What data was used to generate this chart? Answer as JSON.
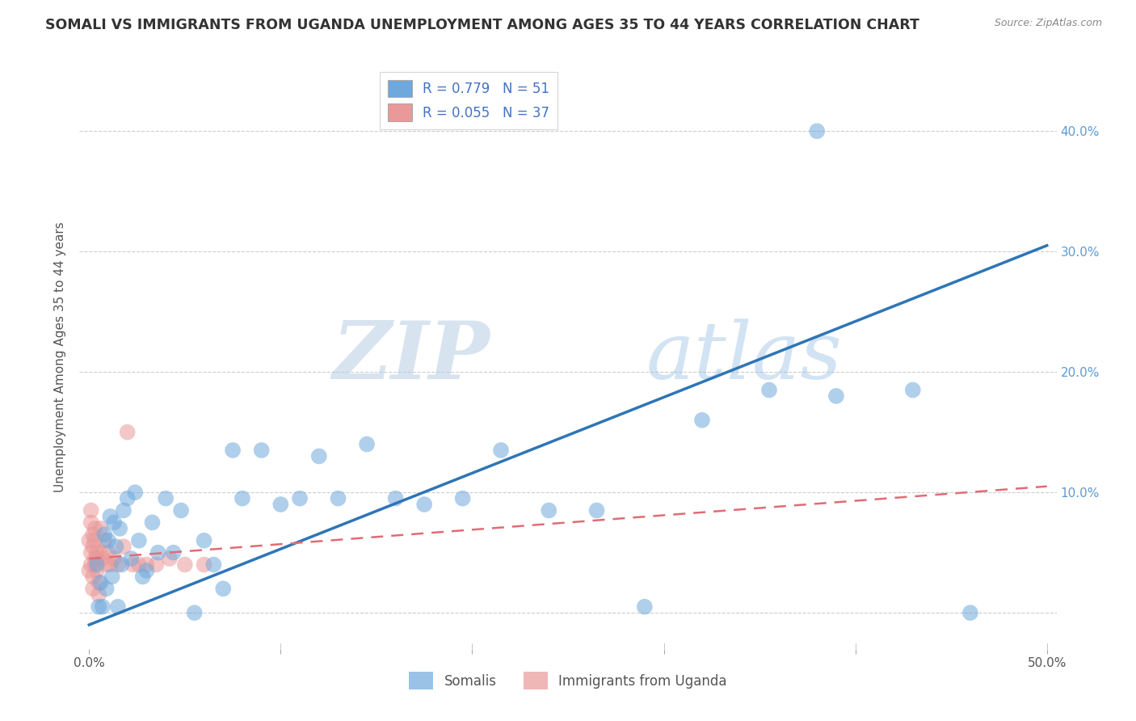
{
  "title": "SOMALI VS IMMIGRANTS FROM UGANDA UNEMPLOYMENT AMONG AGES 35 TO 44 YEARS CORRELATION CHART",
  "source": "Source: ZipAtlas.com",
  "ylabel": "Unemployment Among Ages 35 to 44 years",
  "xlim": [
    -0.005,
    0.505
  ],
  "ylim": [
    -0.03,
    0.455
  ],
  "xticks": [
    0.0,
    0.1,
    0.2,
    0.3,
    0.4,
    0.5
  ],
  "yticks": [
    0.0,
    0.1,
    0.2,
    0.3,
    0.4
  ],
  "xticklabels": [
    "0.0%",
    "",
    "",
    "",
    "",
    "50.0%"
  ],
  "right_yticklabels": [
    "",
    "10.0%",
    "20.0%",
    "30.0%",
    "40.0%"
  ],
  "somali_color": "#6fa8dc",
  "uganda_color": "#ea9999",
  "somali_line_color": "#2e75b6",
  "uganda_line_color": "#e06c75",
  "somali_R": 0.779,
  "somali_N": 51,
  "uganda_R": 0.055,
  "uganda_N": 37,
  "legend_somali_label": "Somalis",
  "legend_uganda_label": "Immigrants from Uganda",
  "watermark_zip": "ZIP",
  "watermark_atlas": "atlas",
  "somali_x": [
    0.004,
    0.005,
    0.006,
    0.007,
    0.008,
    0.009,
    0.01,
    0.011,
    0.012,
    0.013,
    0.014,
    0.015,
    0.016,
    0.017,
    0.018,
    0.02,
    0.022,
    0.024,
    0.026,
    0.028,
    0.03,
    0.033,
    0.036,
    0.04,
    0.044,
    0.048,
    0.055,
    0.06,
    0.065,
    0.07,
    0.075,
    0.08,
    0.09,
    0.1,
    0.11,
    0.12,
    0.13,
    0.145,
    0.16,
    0.175,
    0.195,
    0.215,
    0.24,
    0.265,
    0.29,
    0.32,
    0.355,
    0.39,
    0.43,
    0.46,
    0.38
  ],
  "somali_y": [
    0.04,
    0.005,
    0.025,
    0.005,
    0.065,
    0.02,
    0.06,
    0.08,
    0.03,
    0.075,
    0.055,
    0.005,
    0.07,
    0.04,
    0.085,
    0.095,
    0.045,
    0.1,
    0.06,
    0.03,
    0.035,
    0.075,
    0.05,
    0.095,
    0.05,
    0.085,
    0.0,
    0.06,
    0.04,
    0.02,
    0.135,
    0.095,
    0.135,
    0.09,
    0.095,
    0.13,
    0.095,
    0.14,
    0.095,
    0.09,
    0.095,
    0.135,
    0.085,
    0.085,
    0.005,
    0.16,
    0.185,
    0.18,
    0.185,
    0.0,
    0.4
  ],
  "uganda_x": [
    0.0,
    0.0,
    0.001,
    0.001,
    0.001,
    0.001,
    0.002,
    0.002,
    0.002,
    0.002,
    0.003,
    0.003,
    0.003,
    0.003,
    0.004,
    0.004,
    0.004,
    0.005,
    0.005,
    0.006,
    0.006,
    0.007,
    0.008,
    0.009,
    0.01,
    0.011,
    0.013,
    0.015,
    0.018,
    0.02,
    0.023,
    0.026,
    0.03,
    0.035,
    0.042,
    0.05,
    0.06
  ],
  "uganda_y": [
    0.035,
    0.06,
    0.075,
    0.085,
    0.05,
    0.04,
    0.065,
    0.03,
    0.02,
    0.055,
    0.045,
    0.04,
    0.07,
    0.06,
    0.035,
    0.05,
    0.045,
    0.025,
    0.015,
    0.07,
    0.05,
    0.045,
    0.06,
    0.04,
    0.05,
    0.04,
    0.045,
    0.04,
    0.055,
    0.15,
    0.04,
    0.04,
    0.04,
    0.04,
    0.045,
    0.04,
    0.04
  ],
  "background_color": "#ffffff",
  "grid_color": "#cccccc",
  "title_fontsize": 12.5,
  "axis_label_fontsize": 11,
  "tick_fontsize": 11,
  "legend_fontsize": 12,
  "somali_line_y0": -0.01,
  "somali_line_y1": 0.305,
  "uganda_line_y0": 0.045,
  "uganda_line_y1": 0.105
}
